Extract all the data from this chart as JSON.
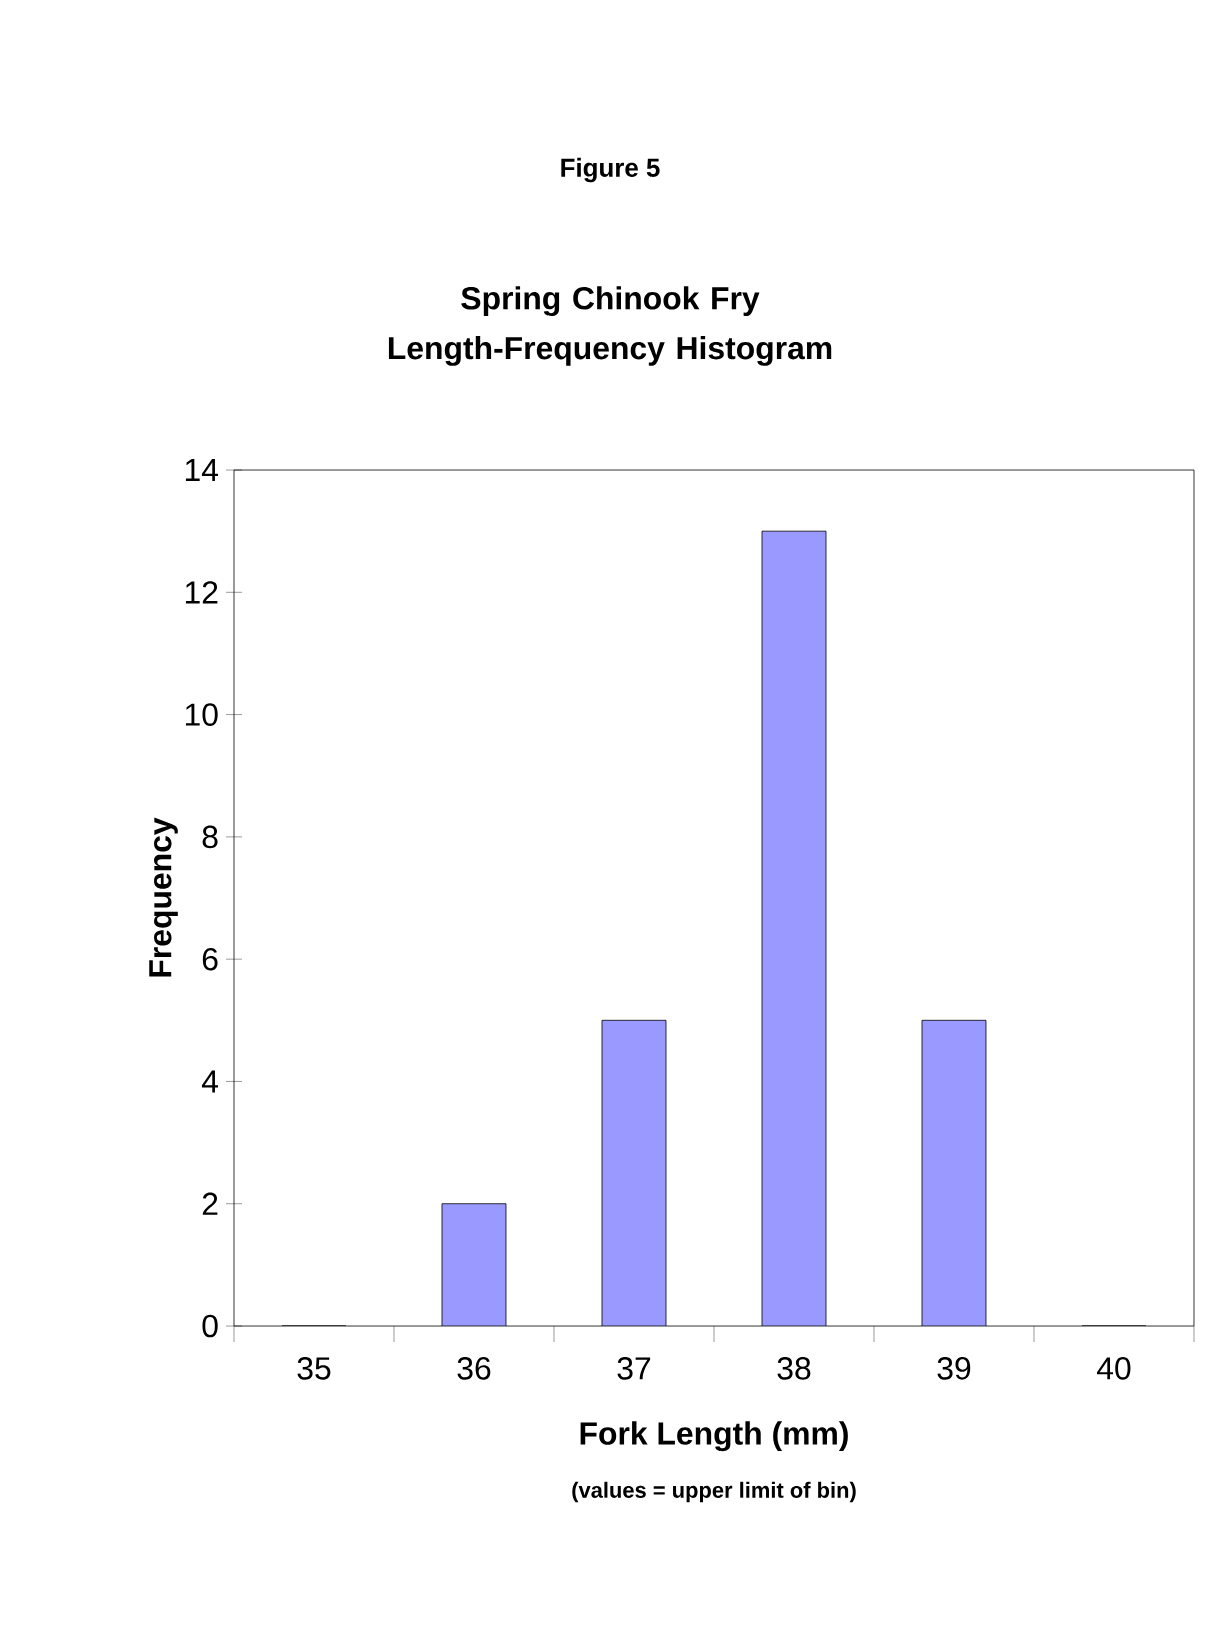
{
  "chart_data": {
    "type": "bar",
    "title": "Figure 5",
    "subtitle": "Spring Chinook Fry Length-Frequency Histogram",
    "xlabel": "Fork Length (mm)",
    "ylabel": "Frequency",
    "annotations": [
      "(values = upper limit of bin)"
    ],
    "categories": [
      "35",
      "36",
      "37",
      "38",
      "39",
      "40"
    ],
    "values": [
      0,
      2,
      5,
      13,
      5,
      0
    ],
    "color": "#9999ff",
    "ylim": [
      0,
      14
    ],
    "yticks": [
      0,
      2,
      4,
      6,
      8,
      10,
      12,
      14
    ],
    "grid": false
  }
}
